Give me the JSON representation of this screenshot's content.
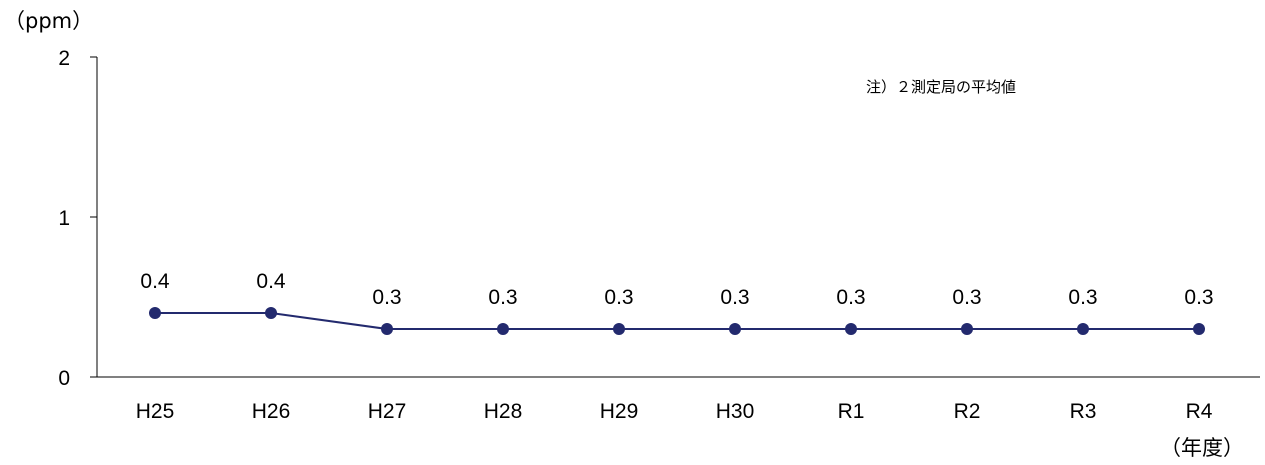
{
  "chart_data": {
    "type": "line",
    "title": "",
    "ylabel": "（ppm）",
    "xlabel": "（年度）",
    "note": "注）２測定局の平均値",
    "categories": [
      "H25",
      "H26",
      "H27",
      "H28",
      "H29",
      "H30",
      "R1",
      "R2",
      "R3",
      "R4"
    ],
    "series": [
      {
        "values": [
          0.4,
          0.4,
          0.3,
          0.3,
          0.3,
          0.3,
          0.3,
          0.3,
          0.3,
          0.3
        ],
        "labels": [
          "0.4",
          "0.4",
          "0.3",
          "0.3",
          "0.3",
          "0.3",
          "0.3",
          "0.3",
          "0.3",
          "0.3"
        ],
        "color": "#232a6e"
      }
    ],
    "yticks": [
      0,
      1,
      2
    ],
    "ylim": [
      0,
      2
    ],
    "grid": false,
    "legend": "none"
  }
}
